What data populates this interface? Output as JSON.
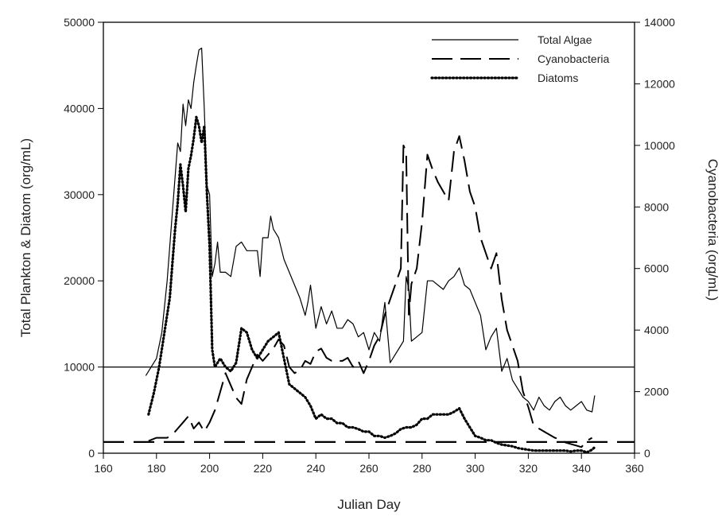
{
  "chart_data": {
    "type": "line",
    "xlabel": "Julian Day",
    "ylabel_left": "Total Plankton & Diatom (org/mL)",
    "ylabel_right": "Cyanobacteria (org/mL)",
    "xlim": [
      160,
      360
    ],
    "ylim_left": [
      0,
      50000
    ],
    "ylim_right": [
      0,
      14000
    ],
    "x_ticks": [
      160,
      180,
      200,
      220,
      240,
      260,
      280,
      300,
      320,
      340,
      360
    ],
    "y_ticks_left": [
      0,
      10000,
      20000,
      30000,
      40000,
      50000
    ],
    "y_ticks_right": [
      0,
      2000,
      4000,
      6000,
      8000,
      10000,
      12000,
      14000
    ],
    "reference_lines": [
      {
        "axis": "left",
        "value": 10000,
        "style": "solid"
      },
      {
        "axis": "left",
        "value": 1300,
        "style": "dashed"
      }
    ],
    "legend": {
      "position": "top-right"
    },
    "series": [
      {
        "name": "Total Algae",
        "axis": "left",
        "style": "solid",
        "x": [
          176,
          178,
          180,
          182,
          184,
          186,
          188,
          189,
          190,
          191,
          192,
          193,
          194,
          195,
          196,
          197,
          198,
          199,
          200,
          201,
          202,
          203,
          204,
          206,
          208,
          210,
          212,
          214,
          216,
          218,
          219,
          220,
          222,
          223,
          224,
          225,
          226,
          228,
          230,
          232,
          234,
          236,
          237,
          238,
          240,
          242,
          244,
          246,
          248,
          250,
          252,
          254,
          256,
          258,
          260,
          262,
          264,
          266,
          268,
          270,
          272,
          273,
          274,
          275,
          276,
          278,
          280,
          282,
          284,
          286,
          288,
          290,
          292,
          294,
          296,
          298,
          300,
          302,
          304,
          306,
          308,
          310,
          312,
          314,
          316,
          318,
          320,
          322,
          324,
          326,
          328,
          330,
          332,
          334,
          336,
          338,
          340,
          342,
          344,
          345
        ],
        "y": [
          9000,
          10000,
          11000,
          14000,
          20000,
          28000,
          36000,
          35000,
          40500,
          38000,
          41000,
          40000,
          43000,
          45000,
          46800,
          47000,
          40000,
          31000,
          30000,
          20500,
          22000,
          24500,
          21000,
          21000,
          20500,
          24000,
          24500,
          23500,
          23500,
          23500,
          20500,
          25000,
          25000,
          27500,
          26000,
          25500,
          25000,
          22500,
          21000,
          19500,
          18000,
          16000,
          17500,
          19500,
          14500,
          17000,
          15000,
          16500,
          14500,
          14500,
          15500,
          15000,
          13500,
          14000,
          12000,
          14000,
          13000,
          17500,
          10500,
          11500,
          12500,
          13000,
          20500,
          19000,
          13000,
          13500,
          14000,
          20000,
          20000,
          19500,
          19000,
          20000,
          20500,
          21500,
          19500,
          19000,
          17500,
          16000,
          12000,
          13500,
          14500,
          9500,
          11000,
          8500,
          7500,
          6500,
          6000,
          5000,
          6500,
          5500,
          5000,
          6000,
          6500,
          5500,
          5000,
          5500,
          6000,
          5000,
          4800,
          6700
        ]
      },
      {
        "name": "Cyanobacteria",
        "axis": "right",
        "style": "dashed",
        "x": [
          177,
          180,
          184,
          186,
          188,
          190,
          192,
          194,
          196,
          198,
          200,
          202,
          204,
          206,
          208,
          210,
          212,
          214,
          216,
          218,
          220,
          222,
          224,
          226,
          228,
          230,
          232,
          234,
          236,
          238,
          240,
          242,
          244,
          246,
          248,
          250,
          252,
          254,
          256,
          258,
          260,
          262,
          264,
          266,
          268,
          270,
          272,
          273,
          274,
          275,
          276,
          278,
          280,
          282,
          284,
          286,
          288,
          290,
          292,
          294,
          296,
          298,
          300,
          302,
          304,
          306,
          308,
          310,
          312,
          314,
          316,
          318,
          320,
          322,
          324,
          326,
          328,
          330,
          332,
          334,
          336,
          338,
          340,
          342,
          344
        ],
        "y": [
          400,
          500,
          500,
          600,
          800,
          1000,
          1200,
          800,
          1000,
          700,
          1000,
          1400,
          2000,
          2600,
          2200,
          1800,
          1600,
          2400,
          2800,
          3200,
          3000,
          3200,
          3400,
          3700,
          3500,
          2800,
          2600,
          2700,
          3000,
          2900,
          3300,
          3400,
          3100,
          3000,
          3000,
          3000,
          3100,
          2800,
          3000,
          2600,
          3000,
          3500,
          3800,
          4500,
          5000,
          5500,
          6000,
          10000,
          9800,
          4500,
          5500,
          6000,
          7500,
          9700,
          9200,
          8800,
          8500,
          8200,
          9800,
          10300,
          9500,
          8500,
          8000,
          7000,
          6500,
          6000,
          6500,
          5000,
          4000,
          3500,
          3000,
          2000,
          1500,
          900,
          800,
          700,
          600,
          500,
          450,
          350,
          300,
          250,
          200,
          400,
          500
        ]
      },
      {
        "name": "Diatoms",
        "axis": "left",
        "style": "dotted",
        "x": [
          177,
          179,
          181,
          183,
          185,
          186,
          187,
          188,
          189,
          190,
          191,
          192,
          193,
          194,
          195,
          196,
          197,
          198,
          199,
          200,
          201,
          202,
          204,
          206,
          208,
          210,
          212,
          214,
          216,
          218,
          220,
          222,
          224,
          226,
          228,
          230,
          232,
          234,
          236,
          238,
          240,
          242,
          244,
          246,
          248,
          250,
          252,
          254,
          256,
          258,
          260,
          262,
          264,
          266,
          268,
          270,
          272,
          274,
          276,
          278,
          280,
          282,
          284,
          286,
          288,
          290,
          292,
          294,
          296,
          298,
          300,
          302,
          304,
          306,
          308,
          310,
          312,
          314,
          316,
          318,
          320,
          322,
          324,
          326,
          328,
          330,
          332,
          334,
          336,
          338,
          340,
          342,
          344,
          345
        ],
        "y": [
          4500,
          7000,
          10000,
          14000,
          18000,
          22000,
          26000,
          29000,
          33500,
          31000,
          28000,
          33000,
          34500,
          36500,
          39000,
          38000,
          36000,
          38000,
          30000,
          24000,
          12000,
          10000,
          11000,
          10000,
          9500,
          10500,
          14500,
          14000,
          12000,
          11000,
          12000,
          13000,
          13500,
          14000,
          11000,
          8000,
          7500,
          7000,
          6500,
          5500,
          4000,
          4500,
          4000,
          4000,
          3500,
          3500,
          3000,
          3000,
          2800,
          2500,
          2500,
          2000,
          2000,
          1800,
          2000,
          2300,
          2800,
          3000,
          3000,
          3300,
          4000,
          4000,
          4500,
          4500,
          4500,
          4500,
          4800,
          5200,
          4000,
          3000,
          2000,
          1800,
          1500,
          1500,
          1200,
          1000,
          900,
          800,
          600,
          500,
          400,
          300,
          300,
          300,
          300,
          300,
          300,
          300,
          200,
          300,
          300,
          100,
          400,
          700
        ]
      }
    ]
  }
}
